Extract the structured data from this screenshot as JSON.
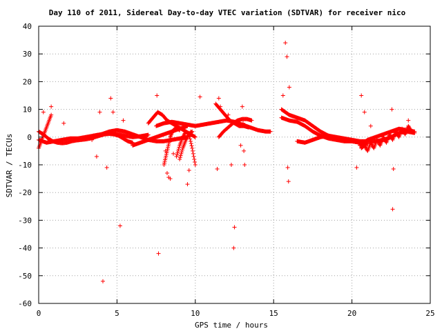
{
  "chart_data": {
    "type": "scatter",
    "title": "Day 110 of 2011, Sidereal Day-to-day VTEC variation (SDTVAR) for receiver nico",
    "xlabel": "GPS time / hours",
    "ylabel": "SDTVAR / TECUs",
    "xlim": [
      0,
      25
    ],
    "ylim": [
      -60,
      40
    ],
    "xticks": [
      0,
      5,
      10,
      15,
      20,
      25
    ],
    "yticks": [
      -60,
      -50,
      -40,
      -30,
      -20,
      -10,
      0,
      10,
      20,
      30,
      40
    ],
    "grid": true,
    "legend": "none",
    "marker": "+",
    "color": "#ff0000",
    "tracks": [
      {
        "x": [
          0.0,
          0.5,
          1.0,
          1.5,
          2.0,
          2.5,
          3.0,
          3.5,
          4.0,
          4.5,
          5.0,
          5.5,
          6.0,
          6.5,
          7.0
        ],
        "y": [
          -1,
          -2,
          -1.5,
          -1,
          -0.5,
          -0.5,
          0,
          0.5,
          1,
          1.2,
          1.0,
          0.5,
          0,
          0.3,
          0.8
        ]
      },
      {
        "x": [
          0.0,
          0.2,
          0.4,
          0.6,
          0.8
        ],
        "y": [
          -4,
          -1,
          2,
          5,
          8
        ]
      },
      {
        "x": [
          0.0,
          0.3,
          0.6,
          0.9,
          1.2,
          1.5,
          1.8,
          2.1,
          2.4,
          2.7,
          3.0,
          3.3,
          3.6,
          3.9,
          4.2,
          4.5,
          4.8,
          5.1,
          5.4,
          5.7,
          6.0
        ],
        "y": [
          2,
          1,
          -0.5,
          -1.5,
          -2,
          -2.2,
          -2,
          -1.5,
          -1.2,
          -1,
          -0.8,
          -0.5,
          0,
          0.5,
          1,
          1.2,
          1,
          0.5,
          -0.5,
          -1.5,
          -2
        ]
      },
      {
        "x": [
          3.5,
          4.0,
          4.5,
          5.0,
          5.5,
          6.0,
          6.5,
          7.0,
          7.5,
          8.0,
          8.5,
          9.0,
          9.5
        ],
        "y": [
          0.5,
          1,
          2,
          2.5,
          2,
          1,
          0,
          -1,
          -1.5,
          -1.5,
          -1.0,
          -0.5,
          0
        ]
      },
      {
        "x": [
          6.0,
          6.5,
          7.0,
          7.5,
          8.0,
          8.5,
          9.0,
          9.5
        ],
        "y": [
          -3,
          -2,
          -1,
          0,
          1,
          2,
          3,
          4
        ]
      },
      {
        "x": [
          7.0,
          7.3,
          7.6,
          7.9,
          8.2,
          8.5,
          8.8,
          9.1,
          9.4,
          9.7,
          10.0
        ],
        "y": [
          5,
          7,
          9,
          8,
          6,
          5,
          4,
          3,
          2,
          1,
          0
        ]
      },
      {
        "x": [
          7.5,
          8.0,
          8.5,
          9.0,
          9.5,
          10.0,
          10.5,
          11.0,
          11.5,
          12.0,
          12.5,
          13.0,
          13.5,
          14.0,
          14.5,
          14.8
        ],
        "y": [
          4,
          5,
          5.5,
          5,
          4.5,
          4,
          4.5,
          5,
          5.5,
          6,
          5.5,
          4.5,
          3.5,
          2.5,
          2.0,
          2.0
        ]
      },
      {
        "x": [
          8.0,
          8.1,
          8.2,
          8.3,
          8.4,
          8.5,
          8.6,
          8.7,
          8.8,
          8.9,
          9.0
        ],
        "y": [
          -10,
          -7.5,
          -5,
          -2.5,
          0,
          1.5,
          2.5,
          3,
          3.2,
          3,
          2.5
        ]
      },
      {
        "x": [
          8.8,
          9.0,
          9.2,
          9.4,
          9.6,
          9.8,
          10.0
        ],
        "y": [
          -7,
          -3,
          0,
          2,
          1,
          -4,
          -10
        ]
      },
      {
        "x": [
          9.0,
          9.2,
          9.4,
          9.6,
          9.8
        ],
        "y": [
          -8,
          -4,
          -1,
          1,
          2
        ]
      },
      {
        "x": [
          11.3,
          11.6,
          11.9,
          12.2,
          12.5,
          12.8,
          13.1,
          13.4
        ],
        "y": [
          12,
          10,
          8,
          6,
          5,
          4,
          4,
          3.5
        ]
      },
      {
        "x": [
          11.5,
          11.8,
          12.1,
          12.4,
          12.7,
          13.0,
          13.3,
          13.6
        ],
        "y": [
          0,
          2,
          3.5,
          5,
          6,
          6.5,
          6.5,
          6
        ]
      },
      {
        "x": [
          15.5,
          16.0,
          16.5,
          17.0,
          17.5,
          18.0,
          18.5,
          19.0,
          19.5,
          20.0,
          20.5,
          21.0
        ],
        "y": [
          10,
          8,
          7,
          6,
          4,
          2,
          0.5,
          -0.5,
          -1.0,
          -1.5,
          -2,
          -2.5
        ]
      },
      {
        "x": [
          15.5,
          16.0,
          16.5,
          17.0,
          17.5,
          18.0,
          18.5,
          19.0,
          19.5,
          20.0,
          20.5
        ],
        "y": [
          7,
          6,
          5.5,
          4,
          2,
          0.5,
          -0.5,
          -1.0,
          -1.5,
          -1.5,
          -2
        ]
      },
      {
        "x": [
          16.5,
          17.0,
          17.5,
          18.0,
          18.5,
          19.0,
          19.5,
          20.0,
          20.5,
          21.0,
          21.5,
          22.0,
          22.5,
          23.0,
          23.5,
          24.0
        ],
        "y": [
          -1.5,
          -2,
          -1,
          0,
          0.5,
          0,
          -0.5,
          -1,
          -1.5,
          -1.5,
          -1.5,
          -1,
          0,
          1.5,
          2,
          1.5
        ]
      },
      {
        "x": [
          20.5,
          21.0,
          21.5,
          22.0,
          22.5,
          23.0,
          23.5,
          24.0
        ],
        "y": [
          -3,
          -1,
          0,
          1,
          2,
          3,
          2.5,
          2
        ]
      },
      {
        "x": [
          20.6,
          20.8,
          21.0,
          21.2,
          21.4,
          21.6,
          21.8,
          22.0,
          22.2,
          22.4,
          22.6,
          22.8,
          23.0,
          23.2,
          23.4,
          23.6,
          23.8
        ],
        "y": [
          -4,
          -3,
          -5,
          -2,
          -4,
          -1,
          -3,
          0,
          -2,
          1,
          -1,
          2,
          0,
          3,
          1,
          4,
          2
        ]
      }
    ],
    "points": {
      "x": [
        0.3,
        0.8,
        1.6,
        3.4,
        3.7,
        3.9,
        4.1,
        4.35,
        4.6,
        4.75,
        5.2,
        5.4,
        5.9,
        7.55,
        7.65,
        8.1,
        8.2,
        8.3,
        8.4,
        8.6,
        9.5,
        9.6,
        9.7,
        10.3,
        11.4,
        11.5,
        11.6,
        12.1,
        12.3,
        12.45,
        12.5,
        12.9,
        13.0,
        13.05,
        13.1,
        13.15,
        15.6,
        15.75,
        15.85,
        15.9,
        15.95,
        16.0,
        20.3,
        20.6,
        20.8,
        21.2,
        22.55,
        22.6,
        22.65,
        23.6
      ],
      "y": [
        9,
        11,
        5,
        -1,
        -7,
        9,
        -52,
        -11,
        14,
        9,
        -32,
        6,
        -2,
        15,
        -42,
        -5,
        -13,
        -14.5,
        -15,
        -6,
        -17,
        -12,
        2,
        14.5,
        -11.5,
        14,
        11,
        8,
        -10,
        -40,
        -32.5,
        -3,
        11,
        5,
        -5,
        -10,
        15,
        34,
        29,
        -11,
        -16,
        18,
        -11,
        15,
        9,
        4,
        10,
        -26,
        -11.5,
        6
      ]
    }
  }
}
